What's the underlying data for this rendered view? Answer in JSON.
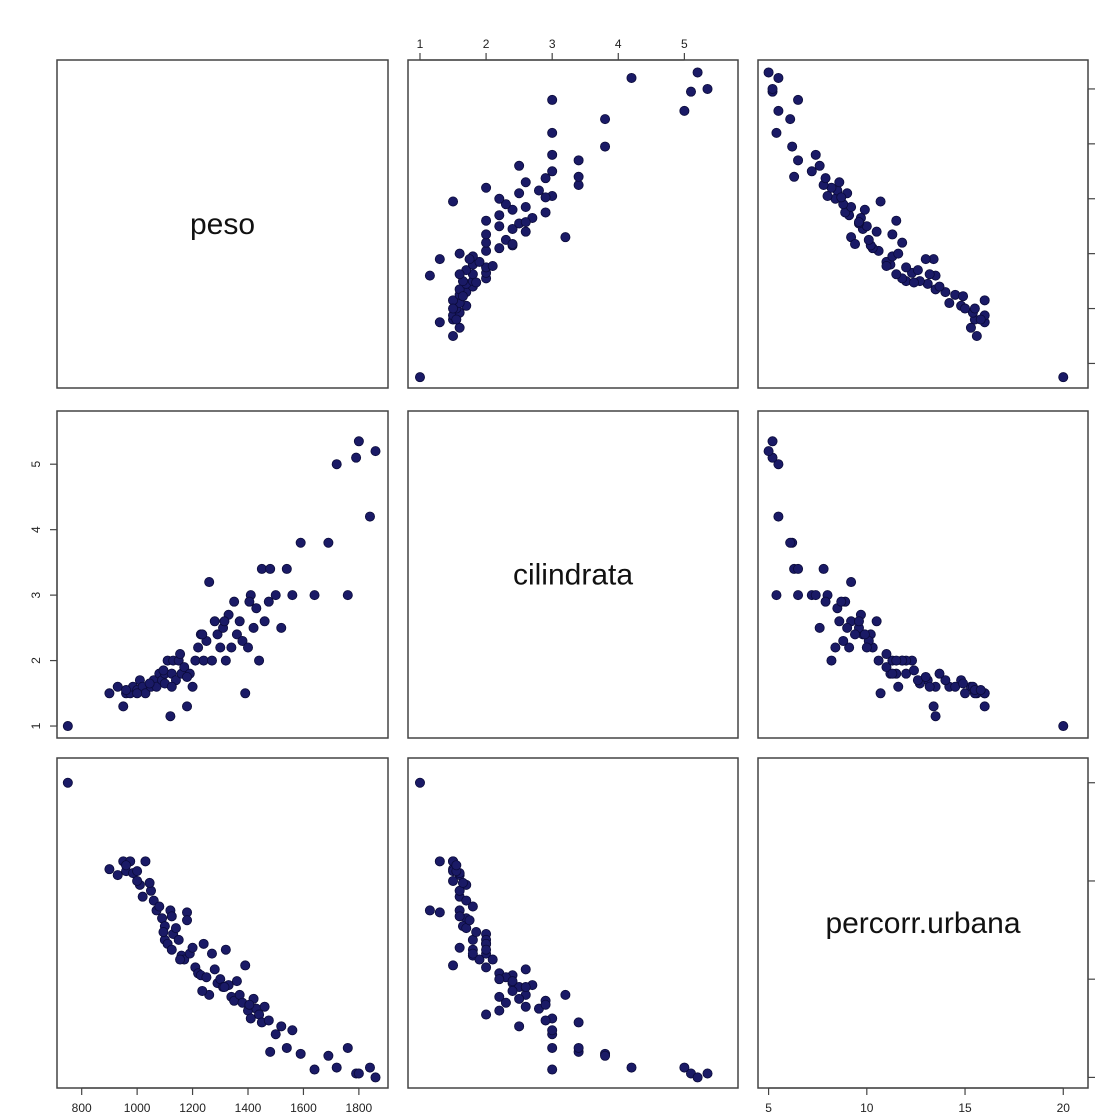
{
  "chart_data": {
    "type": "scatter",
    "variables": [
      "peso",
      "cilindrata",
      "percorr.urbana"
    ],
    "axis_ticks": {
      "peso": [
        "800",
        "1000",
        "1200",
        "1400",
        "1600",
        "1800"
      ],
      "cilindrata": [
        "1",
        "2",
        "3",
        "4",
        "5"
      ],
      "percorr.urbana": [
        "5",
        "10",
        "15",
        "20"
      ]
    },
    "ranges": {
      "peso": [
        747,
        1869
      ],
      "cilindrata": [
        0.97,
        5.66
      ],
      "percorr.urbana": [
        4.97,
        20.75
      ]
    },
    "point_color": "#1a1a66",
    "observations": [
      [
        750,
        1.0,
        20.0
      ],
      [
        900,
        1.5,
        15.6
      ],
      [
        930,
        1.6,
        15.3
      ],
      [
        950,
        1.3,
        16.0
      ],
      [
        960,
        1.5,
        15.5
      ],
      [
        975,
        1.5,
        16.0
      ],
      [
        985,
        1.6,
        15.4
      ],
      [
        1000,
        1.55,
        15.5
      ],
      [
        1010,
        1.7,
        14.8
      ],
      [
        1020,
        1.6,
        14.2
      ],
      [
        1030,
        1.5,
        16.0
      ],
      [
        1050,
        1.6,
        14.5
      ],
      [
        1060,
        1.7,
        14.0
      ],
      [
        1070,
        1.6,
        13.5
      ],
      [
        1080,
        1.8,
        13.7
      ],
      [
        1090,
        1.7,
        13.1
      ],
      [
        1100,
        1.65,
        12.7
      ],
      [
        1100,
        1.8,
        12.0
      ],
      [
        1110,
        2.0,
        11.8
      ],
      [
        1120,
        1.15,
        13.5
      ],
      [
        1125,
        1.8,
        11.5
      ],
      [
        1130,
        2.0,
        12.3
      ],
      [
        1140,
        1.7,
        12.6
      ],
      [
        1150,
        2.0,
        12.0
      ],
      [
        1160,
        1.8,
        11.2
      ],
      [
        1170,
        1.9,
        11.0
      ],
      [
        1180,
        1.3,
        13.4
      ],
      [
        1190,
        1.8,
        11.3
      ],
      [
        1200,
        1.6,
        11.6
      ],
      [
        1210,
        2.0,
        10.6
      ],
      [
        1220,
        2.2,
        10.3
      ],
      [
        1230,
        2.4,
        10.2
      ],
      [
        1240,
        2.0,
        11.8
      ],
      [
        1250,
        2.3,
        10.1
      ],
      [
        1260,
        3.2,
        9.2
      ],
      [
        1270,
        2.0,
        11.3
      ],
      [
        1280,
        2.6,
        10.5
      ],
      [
        1290,
        2.4,
        9.8
      ],
      [
        1300,
        2.2,
        10.0
      ],
      [
        1310,
        2.5,
        9.6
      ],
      [
        1320,
        2.0,
        11.5
      ],
      [
        1330,
        2.7,
        9.7
      ],
      [
        1340,
        2.2,
        9.1
      ],
      [
        1350,
        2.9,
        8.9
      ],
      [
        1360,
        2.4,
        9.9
      ],
      [
        1370,
        2.6,
        9.2
      ],
      [
        1380,
        2.3,
        8.8
      ],
      [
        1390,
        1.5,
        10.7
      ],
      [
        1400,
        2.2,
        8.4
      ],
      [
        1410,
        3.0,
        8.0
      ],
      [
        1420,
        2.5,
        9.0
      ],
      [
        1430,
        2.8,
        8.5
      ],
      [
        1440,
        2.0,
        8.2
      ],
      [
        1450,
        3.4,
        7.8
      ],
      [
        1460,
        2.6,
        8.6
      ],
      [
        1480,
        3.4,
        6.3
      ],
      [
        1500,
        3.0,
        7.2
      ],
      [
        1520,
        2.5,
        7.6
      ],
      [
        1540,
        3.4,
        6.5
      ],
      [
        1560,
        3.0,
        7.4
      ],
      [
        1590,
        3.8,
        6.2
      ],
      [
        1640,
        3.0,
        5.4
      ],
      [
        1690,
        3.8,
        6.1
      ],
      [
        1720,
        5.0,
        5.5
      ],
      [
        1760,
        3.0,
        6.5
      ],
      [
        1790,
        5.1,
        5.2
      ],
      [
        1800,
        5.35,
        5.2
      ],
      [
        1840,
        4.2,
        5.5
      ],
      [
        1860,
        5.2,
        5.0
      ],
      [
        1000,
        1.5,
        15.0
      ],
      [
        1045,
        1.65,
        14.9
      ],
      [
        1095,
        1.85,
        12.4
      ],
      [
        1155,
        2.1,
        11.0
      ],
      [
        1235,
        2.4,
        9.4
      ],
      [
        1315,
        2.6,
        9.6
      ],
      [
        1405,
        2.9,
        8.7
      ],
      [
        1475,
        2.9,
        7.9
      ],
      [
        1180,
        1.75,
        13.0
      ],
      [
        960,
        1.55,
        15.8
      ],
      [
        1125,
        1.6,
        13.2
      ]
    ]
  }
}
